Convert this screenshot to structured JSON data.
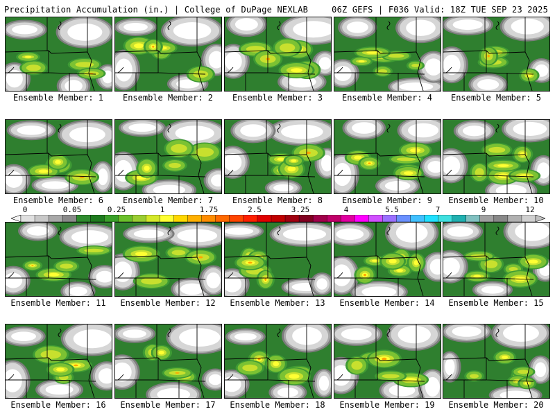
{
  "header": {
    "title": "Precipitation Accumulation (in.) | College of DuPage NEXLAB",
    "run_info": "06Z GEFS | F036 Valid: 18Z TUE SEP 23 2025"
  },
  "colorbar": {
    "tick_labels": [
      "0",
      "0.05",
      "0.25",
      "1",
      "1.75",
      "2.5",
      "3.25",
      "4",
      "5.5",
      "7",
      "9",
      "12"
    ],
    "colors": [
      "#e0e0e0",
      "#c8c8c8",
      "#a8a8a8",
      "#8a8a8a",
      "#2e8b2e",
      "#1e7a1e",
      "#3aa02a",
      "#6abf2a",
      "#9acd32",
      "#d4e82a",
      "#ffff33",
      "#ffd700",
      "#ffb000",
      "#ff8c00",
      "#ff6a00",
      "#ff4500",
      "#ff2000",
      "#e00000",
      "#c00000",
      "#a00010",
      "#800020",
      "#a0004a",
      "#c0006a",
      "#e000a0",
      "#ff00ff",
      "#d050ff",
      "#9a70ff",
      "#6a90ff",
      "#40c0ff",
      "#20e0ff",
      "#40e0e0",
      "#20b0b0",
      "#80c0c0",
      "#a0a0a0",
      "#888888",
      "#b0b0b0",
      "#d0d0d0"
    ]
  },
  "ensemble_label": "Ensemble Member:",
  "members": [
    {
      "number": "1"
    },
    {
      "number": "2"
    },
    {
      "number": "3"
    },
    {
      "number": "4"
    },
    {
      "number": "5"
    },
    {
      "number": "6"
    },
    {
      "number": "7"
    },
    {
      "number": "8"
    },
    {
      "number": "9"
    },
    {
      "number": "10"
    },
    {
      "number": "11"
    },
    {
      "number": "12"
    },
    {
      "number": "13"
    },
    {
      "number": "14"
    },
    {
      "number": "15"
    },
    {
      "number": "16"
    },
    {
      "number": "17"
    },
    {
      "number": "18"
    },
    {
      "number": "19"
    },
    {
      "number": "20"
    }
  ],
  "palette": {
    "white": "#ffffff",
    "gray_light": "#d6d6d6",
    "gray_mid": "#a8a8a8",
    "gray_dark": "#7c7c7c",
    "green_dark": "#2f7f2f",
    "green": "#3e9a34",
    "green_light": "#7cc233",
    "yellow_green": "#c8e02e",
    "yellow": "#ffff33",
    "orange": "#ffa500",
    "red": "#ff3300",
    "border": "#000000"
  }
}
